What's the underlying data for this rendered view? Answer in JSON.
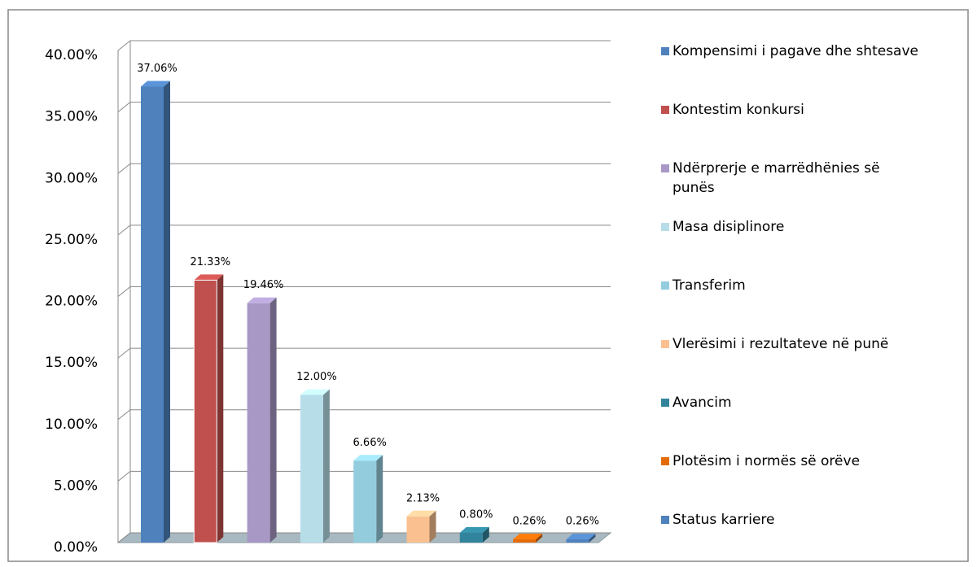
{
  "chart_data": {
    "type": "bar",
    "categories": [
      "Kompensimi i pagave dhe shtesave",
      "Kontestim konkursi",
      "Ndërprerje e marrëdhënies së punës",
      "Masa disiplinore",
      "Transferim",
      "Vlerësimi i rezultateve në punë",
      "Avancim",
      "Plotësim i normës së orëve",
      "Status karriere"
    ],
    "values": [
      37.06,
      21.33,
      19.46,
      12.0,
      6.66,
      2.13,
      0.8,
      0.26,
      0.26
    ],
    "value_labels": [
      "37.06%",
      "21.33%",
      "19.46%",
      "12.00%",
      "6.66%",
      "2.13%",
      "0.80%",
      "0.26%",
      "0.26%"
    ],
    "colors": [
      "#4f81bd",
      "#c0504d",
      "#a898c6",
      "#b7dde8",
      "#93cddd",
      "#fac090",
      "#31849b",
      "#e36c09",
      "#4f81bd"
    ],
    "ylim": [
      0,
      40
    ],
    "yticks": [
      {
        "value": 0,
        "label": "0.00%"
      },
      {
        "value": 5,
        "label": "5.00%"
      },
      {
        "value": 10,
        "label": "10.00%"
      },
      {
        "value": 15,
        "label": "15.00%"
      },
      {
        "value": 20,
        "label": "20.00%"
      },
      {
        "value": 25,
        "label": "25.00%"
      },
      {
        "value": 30,
        "label": "30.00%"
      },
      {
        "value": 35,
        "label": "35.00%"
      },
      {
        "value": 40,
        "label": "40.00%"
      }
    ],
    "grid": true,
    "legend": "right"
  }
}
